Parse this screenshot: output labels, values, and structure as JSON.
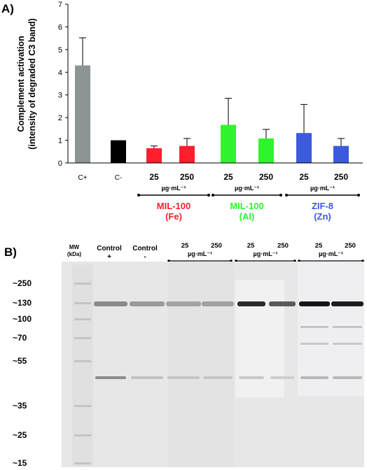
{
  "panel_a_label": "A)",
  "panel_b_label": "B)",
  "colors": {
    "c_plus": "#8c9494",
    "c_minus": "#000000",
    "mil100_fe": "#ff1e2d",
    "mil100_al": "#2ef52e",
    "zif8": "#3c5adc"
  },
  "chart_data": {
    "type": "bar",
    "ylabel_line1": "Complement activation",
    "ylabel_line2": "(intensity of degraded C3 band)",
    "ylim": [
      0,
      7
    ],
    "yticks": [
      "0",
      "1",
      "2",
      "3",
      "4",
      "5",
      "6",
      "7"
    ],
    "categories": [
      "C+",
      "C-",
      "25",
      "250",
      "25",
      "250",
      "25",
      "250"
    ],
    "values": [
      4.3,
      1.0,
      0.65,
      0.75,
      1.68,
      1.08,
      1.32,
      0.75
    ],
    "errors": [
      1.22,
      0.0,
      0.1,
      0.33,
      1.17,
      0.4,
      1.26,
      0.33
    ],
    "bar_colors": [
      "#8c9494",
      "#000000",
      "#ff1e2d",
      "#ff1e2d",
      "#2ef52e",
      "#2ef52e",
      "#3c5adc",
      "#3c5adc"
    ],
    "groups": [
      {
        "unit": "µg·mL⁻¹",
        "name_line1": "MIL-100",
        "name_line2": "(Fe)",
        "color": "#ff1e2d"
      },
      {
        "unit": "µg·mL⁻¹",
        "name_line1": "MIL-100",
        "name_line2": "(Al)",
        "color": "#2ef52e"
      },
      {
        "unit": "µg·mL⁻¹",
        "name_line1": "ZIF-8",
        "name_line2": "(Zn)",
        "color": "#3c5adc"
      }
    ]
  },
  "gel": {
    "mw_header_line1": "MW",
    "mw_header_line2": "(kDa)",
    "mw_markers": [
      "~250",
      "~130",
      "~100",
      "~70",
      "~55",
      "~35",
      "~25",
      "~15"
    ],
    "lane_headers": [
      {
        "line1": "Control",
        "line2": "+"
      },
      {
        "line1": "Control",
        "line2": "-"
      }
    ],
    "groups": [
      {
        "conc_low": "25",
        "conc_high": "250",
        "unit": "µg·mL⁻¹",
        "name_line1": "MIL-100",
        "name_line2": "(Fe)",
        "color": "#ff1e2d"
      },
      {
        "conc_low": "25",
        "conc_high": "250",
        "unit": "µg·mL⁻¹",
        "name_line1": "MIL-100",
        "name_line2": "(Al)",
        "color": "#2ef52e"
      },
      {
        "conc_low": "25",
        "conc_high": "250",
        "unit": "µg·mL⁻¹",
        "name_line1": "ZIF-8",
        "name_line2": "(Zn)",
        "color": "#3c5adc"
      }
    ]
  }
}
